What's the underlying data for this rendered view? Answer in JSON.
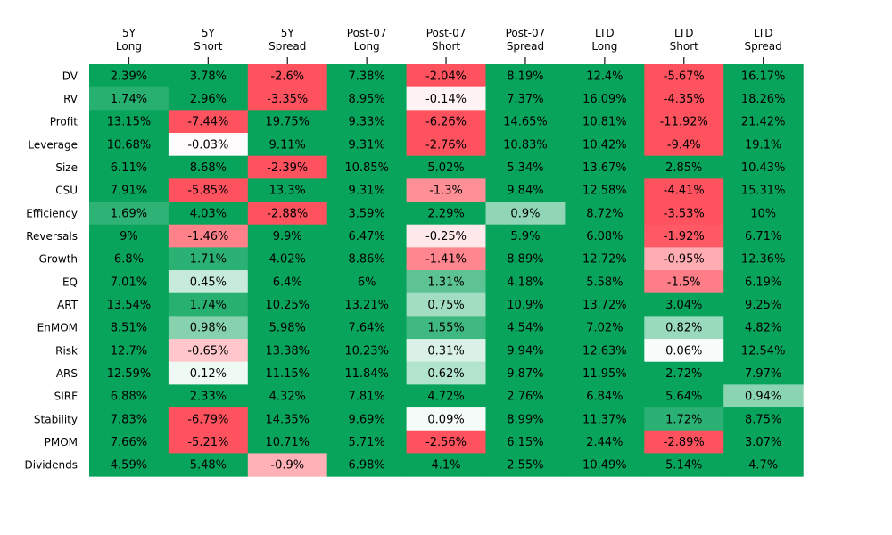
{
  "chart_data": {
    "type": "heatmap",
    "title": "",
    "xlabel": "",
    "ylabel": "",
    "columns": [
      [
        "5Y",
        "Long"
      ],
      [
        "5Y",
        "Short"
      ],
      [
        "5Y",
        "Spread"
      ],
      [
        "Post-07",
        "Long"
      ],
      [
        "Post-07",
        "Short"
      ],
      [
        "Post-07",
        "Spread"
      ],
      [
        "LTD",
        "Long"
      ],
      [
        "LTD",
        "Short"
      ],
      [
        "LTD",
        "Spread"
      ]
    ],
    "rows": [
      "DV",
      "RV",
      "Profit",
      "Leverage",
      "Size",
      "CSU",
      "Efficiency",
      "Reversals",
      "Growth",
      "EQ",
      "ART",
      "EnMOM",
      "Risk",
      "ARS",
      "SIRF",
      "Stability",
      "PMOM",
      "Dividends"
    ],
    "values": [
      [
        2.39,
        3.78,
        -2.6,
        7.38,
        -2.04,
        8.19,
        12.4,
        -5.67,
        16.17
      ],
      [
        1.74,
        2.96,
        -3.35,
        8.95,
        -0.14,
        7.37,
        16.09,
        -4.35,
        18.26
      ],
      [
        13.15,
        -7.44,
        19.75,
        9.33,
        -6.26,
        14.65,
        10.81,
        -11.92,
        21.42
      ],
      [
        10.68,
        -0.03,
        9.11,
        9.31,
        -2.76,
        10.83,
        10.42,
        -9.4,
        19.1
      ],
      [
        6.11,
        8.68,
        -2.39,
        10.85,
        5.02,
        5.34,
        13.67,
        2.85,
        10.43
      ],
      [
        7.91,
        -5.85,
        13.3,
        9.31,
        -1.3,
        9.84,
        12.58,
        -4.41,
        15.31
      ],
      [
        1.69,
        4.03,
        -2.88,
        3.59,
        2.29,
        0.9,
        8.72,
        -3.53,
        10.0
      ],
      [
        9.0,
        -1.46,
        9.9,
        6.47,
        -0.25,
        5.9,
        6.08,
        -1.92,
        6.71
      ],
      [
        6.8,
        1.71,
        4.02,
        8.86,
        -1.41,
        8.89,
        12.72,
        -0.95,
        12.36
      ],
      [
        7.01,
        0.45,
        6.4,
        6.0,
        1.31,
        4.18,
        5.58,
        -1.5,
        6.19
      ],
      [
        13.54,
        1.74,
        10.25,
        13.21,
        0.75,
        10.9,
        13.72,
        3.04,
        9.25
      ],
      [
        8.51,
        0.98,
        5.98,
        7.64,
        1.55,
        4.54,
        7.02,
        0.82,
        4.82
      ],
      [
        12.7,
        -0.65,
        13.38,
        10.23,
        0.31,
        9.94,
        12.63,
        0.06,
        12.54
      ],
      [
        12.59,
        0.12,
        11.15,
        11.84,
        0.62,
        9.87,
        11.95,
        2.72,
        7.97
      ],
      [
        6.88,
        2.33,
        4.32,
        7.81,
        4.72,
        2.76,
        6.84,
        5.64,
        0.94
      ],
      [
        7.83,
        -6.79,
        14.35,
        9.69,
        0.09,
        8.99,
        11.37,
        1.72,
        8.75
      ],
      [
        7.66,
        -5.21,
        10.71,
        5.71,
        -2.56,
        6.15,
        2.44,
        -2.89,
        3.07
      ],
      [
        4.59,
        5.48,
        -0.9,
        6.98,
        4.1,
        2.55,
        10.49,
        5.14,
        4.7
      ]
    ],
    "value_suffix": "%",
    "color_scale": {
      "negative": "#ff525f",
      "neutral": "#ffffff",
      "positive": "#08a45c",
      "range": [
        -2,
        2
      ]
    },
    "grid": false,
    "legend": "none"
  }
}
